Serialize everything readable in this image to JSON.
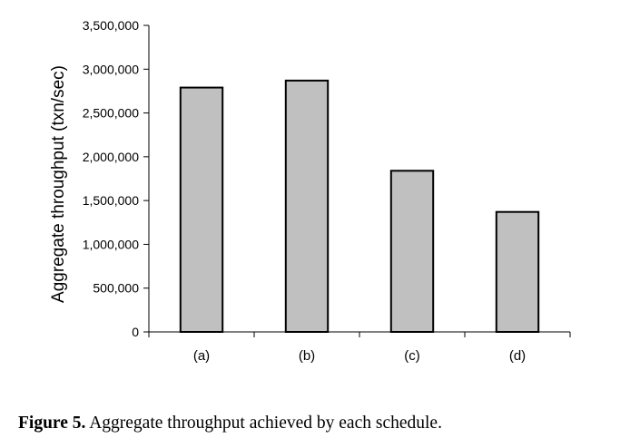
{
  "chart_data": {
    "type": "bar",
    "categories": [
      "(a)",
      "(b)",
      "(c)",
      "(d)"
    ],
    "values": [
      2790000,
      2870000,
      1840000,
      1370000
    ],
    "title": "",
    "xlabel": "",
    "ylabel": "Aggregate throughput (txn/sec)",
    "ylim": [
      0,
      3500000
    ],
    "yticks": [
      0,
      500000,
      1000000,
      1500000,
      2000000,
      2500000,
      3000000,
      3500000
    ],
    "ytick_labels": [
      "0",
      "500,000",
      "1,000,000",
      "1,500,000",
      "2,000,000",
      "2,500,000",
      "3,000,000",
      "3,500,000"
    ],
    "grid": false,
    "legend": "none",
    "bar_color": "#c0c0c0",
    "bar_edge_color": "#000000"
  },
  "caption": {
    "label": "Figure 5.",
    "text": " Aggregate throughput achieved by each schedule."
  }
}
